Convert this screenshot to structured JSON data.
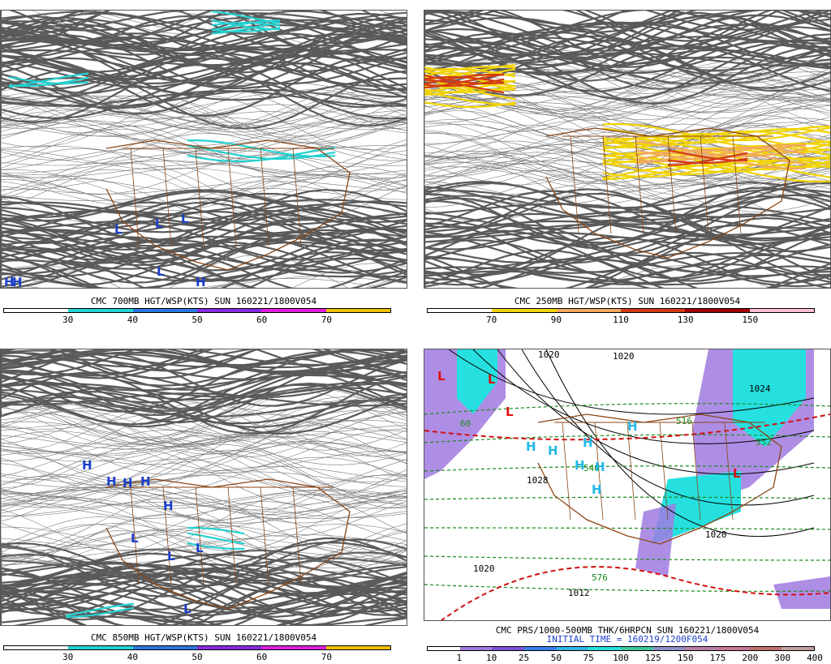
{
  "panels": [
    {
      "id": "700mb",
      "caption": "CMC 700MB HGT/WSP(KTS) SUN 160221/1800V054",
      "colorbar": {
        "colors": [
          "#ffffff",
          "#24d2d2",
          "#2b78e0",
          "#8a2be2",
          "#e01ee0",
          "#f0c000"
        ],
        "labels": [
          "30",
          "40",
          "50",
          "60",
          "70"
        ]
      },
      "symbols": [
        "L",
        "L",
        "L",
        "L",
        "H",
        "H",
        "H"
      ]
    },
    {
      "id": "250mb",
      "caption": "CMC 250MB HGT/WSP(KTS) SUN 160221/1800V054",
      "colorbar": {
        "colors": [
          "#ffffff",
          "#f2d400",
          "#f0a860",
          "#d23c14",
          "#a00000",
          "#ffc0d0"
        ],
        "labels": [
          "70",
          "90",
          "110",
          "130",
          "150"
        ]
      },
      "symbols": []
    },
    {
      "id": "850mb",
      "caption": "CMC 850MB HGT/WSP(KTS) SUN 160221/1800V054",
      "colorbar": {
        "colors": [
          "#ffffff",
          "#24d2d2",
          "#2b78e0",
          "#8a2be2",
          "#e01ee0",
          "#f0c000"
        ],
        "labels": [
          "30",
          "40",
          "50",
          "60",
          "70"
        ]
      },
      "symbols": [
        "H",
        "H",
        "H",
        "H",
        "H",
        "L",
        "L",
        "L",
        "L"
      ]
    },
    {
      "id": "prs",
      "caption": "CMC PRS/1000-500MB THK/6HRPCN SUN 160221/1800V054",
      "caption2": "INITIAL TIME = 160219/1200F054",
      "colorbar": {
        "colors": [
          "#ffffff",
          "#a07ae0",
          "#7e52d8",
          "#3a7ef0",
          "#30b8e8",
          "#26e0e0",
          "#40c8a0",
          "#9090c8",
          "#b880a8",
          "#c87898",
          "#c07070",
          "#c0a0a0"
        ],
        "labels": [
          "1",
          "10",
          "25",
          "50",
          "75",
          "100",
          "125",
          "150",
          "175",
          "200",
          "300",
          "400"
        ]
      },
      "isobars": [
        "1020",
        "1028",
        "1020",
        "1020",
        "1012",
        "1024",
        "1020"
      ],
      "thickness": [
        "516",
        "540",
        "552",
        "576",
        "60"
      ],
      "symbols": [
        "L",
        "L",
        "L",
        "H",
        "H",
        "H",
        "H",
        "H",
        "H",
        "H",
        "L"
      ]
    }
  ]
}
